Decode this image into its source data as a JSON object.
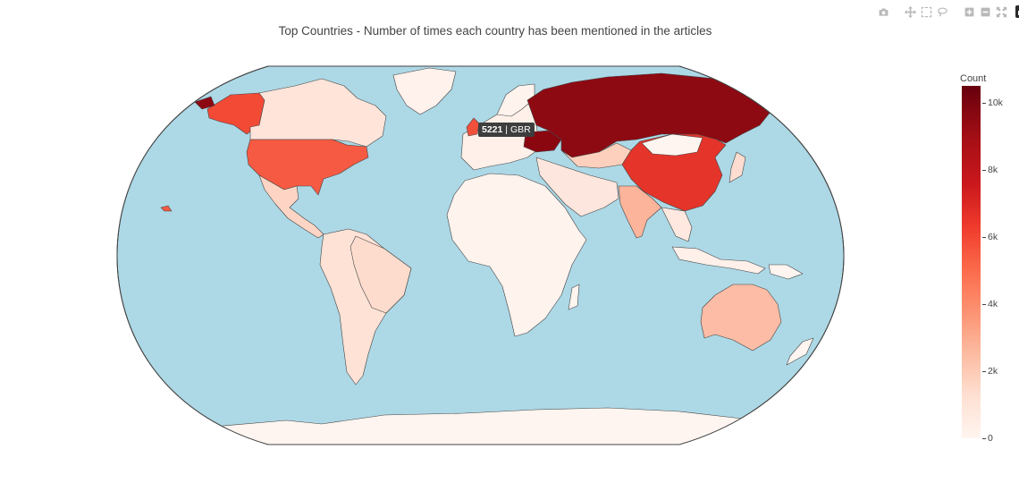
{
  "title": "Top Countries - Number of times each country has been mentioned in the articles",
  "modebar": {
    "buttons": [
      "camera-icon",
      "pan-icon",
      "box-select-icon",
      "lasso-icon",
      "zoom-in-icon",
      "zoom-out-icon",
      "autoscale-icon",
      "plotly-logo-icon"
    ]
  },
  "colors": {
    "ocean": "#add8e6",
    "land_low": "#fff5f0",
    "land_high": "#67000d",
    "border": "#444444"
  },
  "hover": {
    "value": "5221",
    "separator": "|",
    "code": "GBR"
  },
  "chart_data": {
    "type": "choropleth",
    "title": "Top Countries - Number of times each country has been mentioned in the articles",
    "colorscale": "Reds",
    "projection": "natural earth",
    "colorbar": {
      "title": "Count",
      "ticks": [
        "0",
        "2k",
        "4k",
        "6k",
        "8k",
        "10k"
      ],
      "range": [
        0,
        10500
      ]
    },
    "countries": [
      {
        "code": "RUS",
        "value": 10500
      },
      {
        "code": "UKR",
        "value": 9800
      },
      {
        "code": "CHN",
        "value": 6400
      },
      {
        "code": "USA",
        "value": 5600
      },
      {
        "code": "GBR",
        "value": 5221
      },
      {
        "code": "AUS",
        "value": 2800
      },
      {
        "code": "IND",
        "value": 2500
      },
      {
        "code": "KAZ",
        "value": 1000
      },
      {
        "code": "CAN",
        "value": 900
      },
      {
        "code": "BRA",
        "value": 800
      },
      {
        "code": "MEX",
        "value": 700
      },
      {
        "code": "TUR",
        "value": 700
      },
      {
        "code": "IRN",
        "value": 600
      },
      {
        "code": "JPN",
        "value": 900
      },
      {
        "code": "KOR",
        "value": 500
      },
      {
        "code": "IDN",
        "value": 300
      },
      {
        "code": "ARG",
        "value": 400
      },
      {
        "code": "FRA",
        "value": 1200
      },
      {
        "code": "DEU",
        "value": 1300
      },
      {
        "code": "SAU",
        "value": 600
      },
      {
        "code": "MNG",
        "value": 0
      },
      {
        "code": "GRL",
        "value": 100
      }
    ]
  }
}
